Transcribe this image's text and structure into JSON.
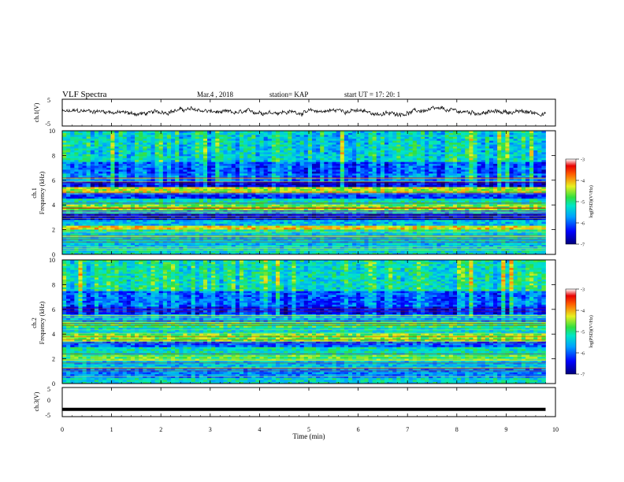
{
  "header": {
    "title": "VLF Spectra",
    "date": "Mar.4 , 2018",
    "station": "station= KAP",
    "start": "start  UT =   17: 20: 1"
  },
  "chart_data": [
    {
      "type": "line",
      "ylabel": "ch.1(V)",
      "ylim": [
        -5,
        5
      ],
      "yticks": [
        "5",
        "-5"
      ],
      "x_range": [
        0,
        9.8
      ],
      "trace_mean": 0.3,
      "trace_noise_amplitude": 1.2
    },
    {
      "type": "heatmap",
      "ylabel_top": "ch.1",
      "ylabel": "Frequency (kHz)",
      "xlim": [
        0,
        10
      ],
      "ylim": [
        0,
        10
      ],
      "yticks": [
        "0",
        "2",
        "4",
        "6",
        "8",
        "10"
      ],
      "data_extent_x": [
        0,
        9.8
      ],
      "bands": [
        {
          "from": 0.0,
          "to": 0.4,
          "level": -5.3
        },
        {
          "from": 0.4,
          "to": 1.0,
          "level": -5.5
        },
        {
          "from": 1.0,
          "to": 1.8,
          "level": -5.4
        },
        {
          "from": 1.8,
          "to": 2.1,
          "level": -5.0
        },
        {
          "from": 2.1,
          "to": 2.4,
          "level": -4.2
        },
        {
          "from": 2.4,
          "to": 2.8,
          "level": -5.5
        },
        {
          "from": 2.8,
          "to": 3.3,
          "level": -6.6
        },
        {
          "from": 3.3,
          "to": 3.6,
          "level": -5.6
        },
        {
          "from": 3.6,
          "to": 4.0,
          "level": -4.6
        },
        {
          "from": 4.0,
          "to": 4.6,
          "level": -5.2
        },
        {
          "from": 4.6,
          "to": 5.0,
          "level": -6.2
        },
        {
          "from": 5.0,
          "to": 5.4,
          "level": -4.4
        },
        {
          "from": 5.4,
          "to": 6.0,
          "level": -6.5
        },
        {
          "from": 6.0,
          "to": 6.5,
          "level": -5.8
        },
        {
          "from": 6.5,
          "to": 7.5,
          "level": -6.0
        },
        {
          "from": 7.5,
          "to": 10.0,
          "level": -5.3
        }
      ],
      "colorbar": {
        "label": "log(PSD)(V²/Hz)",
        "ticks": [
          "-3",
          "-4",
          "-5",
          "-6",
          "-7"
        ],
        "range": [
          -7,
          -3
        ]
      }
    },
    {
      "type": "heatmap",
      "ylabel_top": "ch.2",
      "ylabel": "Frequency (kHz)",
      "xlim": [
        0,
        10
      ],
      "ylim": [
        0,
        10
      ],
      "yticks": [
        "0",
        "2",
        "4",
        "6",
        "8",
        "10"
      ],
      "data_extent_x": [
        0,
        9.8
      ],
      "bands": [
        {
          "from": 0.0,
          "to": 0.5,
          "level": -5.3
        },
        {
          "from": 0.5,
          "to": 1.2,
          "level": -5.8
        },
        {
          "from": 1.2,
          "to": 1.8,
          "level": -5.5
        },
        {
          "from": 1.8,
          "to": 2.4,
          "level": -4.8
        },
        {
          "from": 2.4,
          "to": 3.0,
          "level": -5.2
        },
        {
          "from": 3.0,
          "to": 3.5,
          "level": -6.0
        },
        {
          "from": 3.5,
          "to": 4.0,
          "level": -4.6
        },
        {
          "from": 4.0,
          "to": 4.5,
          "level": -5.3
        },
        {
          "from": 4.5,
          "to": 5.0,
          "level": -4.9
        },
        {
          "from": 5.0,
          "to": 5.6,
          "level": -5.6
        },
        {
          "from": 5.6,
          "to": 6.2,
          "level": -6.3
        },
        {
          "from": 6.2,
          "to": 7.5,
          "level": -5.9
        },
        {
          "from": 7.5,
          "to": 10.0,
          "level": -5.1
        }
      ],
      "colorbar": {
        "label": "log(PSD)(V²/Hz)",
        "ticks": [
          "-3",
          "-4",
          "-5",
          "-6",
          "-7"
        ],
        "range": [
          -7,
          -3
        ]
      }
    },
    {
      "type": "line",
      "ylabel": "ch.3(V)",
      "ylim": [
        -5,
        5
      ],
      "yticks": [
        "5",
        "0",
        "-5"
      ],
      "x_range": [
        0,
        9.8
      ],
      "trace_mean": -2.5,
      "trace_noise_amplitude": 0
    }
  ],
  "x_axis": {
    "label": "Time (min)",
    "ticks": [
      "0",
      "1",
      "2",
      "3",
      "4",
      "5",
      "6",
      "7",
      "8",
      "9",
      "10"
    ],
    "xlim": [
      0,
      10
    ]
  },
  "colors": {
    "frame": "#000000",
    "trace": "#000000"
  }
}
